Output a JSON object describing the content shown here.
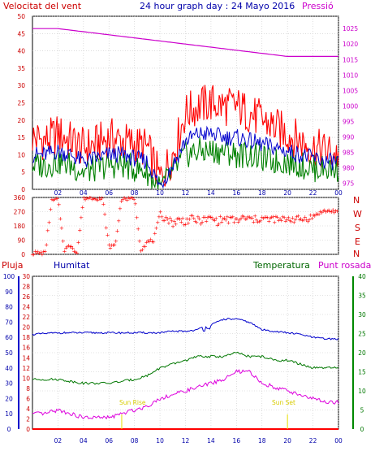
{
  "header": {
    "wind_speed_title": "Velocitat del vent",
    "graph_title": "24 hour graph day : 24 Mayo 2016",
    "pressure_title": "Pressió",
    "rain_title": "Pluja",
    "humidity_title": "Humitat",
    "temperature_title": "Temperatura",
    "dewpoint_title": "Punt rosada",
    "sunrise_label": "Sun Rise",
    "sunset_label": "Sun Set"
  },
  "colors": {
    "wind_gust": "#ff0000",
    "wind_avg": "#0000cc",
    "wind_low": "#008000",
    "pressure": "#cc00cc",
    "direction": "#ff0000",
    "humidity": "#0000cc",
    "temperature": "#007700",
    "dewpoint": "#dd00dd",
    "rain": "#ff0000",
    "sun": "#e8e000"
  },
  "chart_data": [
    {
      "type": "line",
      "x_ticks": [
        "02",
        "04",
        "06",
        "08",
        "10",
        "12",
        "14",
        "16",
        "18",
        "20",
        "22",
        "00"
      ],
      "y_ticks_left": [
        "0",
        "5",
        "10",
        "15",
        "20",
        "25",
        "30",
        "35",
        "40",
        "45",
        "50"
      ],
      "y_ticks_right": [
        "975",
        "980",
        "985",
        "990",
        "995",
        "1000",
        "1005",
        "1010",
        "1015",
        "1020",
        "1025"
      ],
      "ylim": [
        0,
        50
      ],
      "ylim_right": [
        973,
        1029
      ],
      "grid": true,
      "series": [
        {
          "name": "Velocitat del vent",
          "hours": [
            0,
            1,
            2,
            3,
            4,
            5,
            6,
            7,
            8,
            9,
            10,
            11,
            12,
            13,
            14,
            15,
            16,
            17,
            18,
            19,
            20,
            21,
            22,
            23,
            24
          ],
          "values": [
            15,
            14,
            16,
            14,
            12,
            13,
            15,
            14,
            13,
            12,
            3,
            10,
            22,
            24,
            25,
            24,
            24,
            22,
            20,
            18,
            16,
            14,
            12,
            11,
            10
          ]
        },
        {
          "name": "",
          "hours": [
            0,
            1,
            2,
            3,
            4,
            5,
            6,
            7,
            8,
            9,
            10,
            11,
            12,
            13,
            14,
            15,
            16,
            17,
            18,
            19,
            20,
            21,
            22,
            23,
            24
          ],
          "values": [
            10,
            10,
            11,
            10,
            8,
            9,
            10,
            10,
            9,
            8,
            1,
            7,
            14,
            16,
            16,
            15,
            15,
            14,
            13,
            12,
            11,
            10,
            9,
            8,
            8
          ]
        },
        {
          "name": "",
          "hours": [
            0,
            1,
            2,
            3,
            4,
            5,
            6,
            7,
            8,
            9,
            10,
            11,
            12,
            13,
            14,
            15,
            16,
            17,
            18,
            19,
            20,
            21,
            22,
            23,
            24
          ],
          "values": [
            7,
            7,
            8,
            7,
            5,
            6,
            7,
            7,
            6,
            5,
            0,
            5,
            10,
            11,
            11,
            11,
            10,
            10,
            9,
            8,
            8,
            7,
            6,
            6,
            6
          ]
        },
        {
          "name": "Pressió",
          "hours": [
            0,
            2,
            4,
            6,
            8,
            10,
            12,
            14,
            16,
            18,
            20,
            22,
            24
          ],
          "values": [
            1025,
            1025,
            1024,
            1023,
            1022,
            1021,
            1020,
            1019,
            1018,
            1017,
            1016,
            1016,
            1016
          ]
        }
      ]
    },
    {
      "type": "scatter",
      "x_ticks": [
        "02",
        "04",
        "06",
        "08",
        "10",
        "12",
        "14",
        "16",
        "18",
        "20",
        "22",
        "00"
      ],
      "y_ticks_left": [
        "0",
        "90",
        "180",
        "270",
        "360"
      ],
      "direction_labels": [
        "N",
        "W",
        "S",
        "E",
        "N"
      ],
      "ylim": [
        0,
        360
      ],
      "grid": true,
      "series": [
        {
          "name": "",
          "hours": [
            0,
            0.5,
            1,
            1.5,
            2,
            2.5,
            3,
            3.5,
            4,
            4.5,
            5,
            5.5,
            6,
            6.5,
            7,
            7.5,
            8,
            8.5,
            9,
            9.5,
            10,
            10.5,
            11,
            11.5,
            12,
            12.5,
            13,
            13.5,
            14,
            14.5,
            15,
            15.5,
            16,
            16.5,
            17,
            17.5,
            18,
            18.5,
            19,
            19.5,
            20,
            20.5,
            21,
            21.5,
            22,
            22.5,
            23,
            23.5,
            24
          ],
          "values": [
            10,
            10,
            10,
            340,
            350,
            30,
            60,
            10,
            355,
            360,
            360,
            350,
            50,
            60,
            360,
            350,
            360,
            30,
            80,
            90,
            250,
            230,
            200,
            220,
            210,
            225,
            215,
            220,
            230,
            210,
            225,
            220,
            215,
            230,
            225,
            220,
            230,
            220,
            225,
            215,
            230,
            225,
            220,
            230,
            240,
            265,
            275,
            275,
            275
          ]
        }
      ]
    },
    {
      "type": "line",
      "x_ticks": [
        "02",
        "04",
        "06",
        "08",
        "10",
        "12",
        "14",
        "16",
        "18",
        "20",
        "22",
        "00"
      ],
      "y_ticks_rain": [
        "0",
        "2",
        "4",
        "6",
        "8",
        "10",
        "12",
        "14",
        "16",
        "18",
        "20",
        "22",
        "24",
        "26",
        "28",
        "30"
      ],
      "y_ticks_humidity": [
        "0",
        "10",
        "20",
        "30",
        "40",
        "50",
        "60",
        "70",
        "80",
        "90",
        "100"
      ],
      "y_ticks_temperature": [
        "0",
        "5",
        "10",
        "15",
        "20",
        "25",
        "30",
        "35",
        "40"
      ],
      "ylim_temperature": [
        0,
        40
      ],
      "grid": true,
      "sunrise_hour": 7,
      "sunset_hour": 20,
      "series": [
        {
          "name": "Humitat",
          "hours": [
            0,
            2,
            4,
            6,
            8,
            10,
            11,
            12,
            13,
            14,
            15,
            16,
            17,
            18,
            19,
            20,
            21,
            22,
            23,
            24
          ],
          "values": [
            62,
            63,
            63,
            63,
            63,
            63,
            64,
            64,
            65,
            68,
            72,
            72,
            70,
            65,
            64,
            63,
            62,
            60,
            59,
            59
          ]
        },
        {
          "name": "Temperatura",
          "hours": [
            0,
            2,
            4,
            6,
            8,
            9,
            10,
            11,
            12,
            13,
            14,
            15,
            16,
            17,
            18,
            19,
            20,
            21,
            22,
            23,
            24
          ],
          "values": [
            13,
            13,
            12,
            12,
            13,
            14,
            16,
            17,
            18,
            19,
            19,
            19,
            20,
            19,
            19,
            18,
            18,
            17,
            16,
            16,
            16
          ]
        },
        {
          "name": "Punt rosada",
          "hours": [
            0,
            1,
            2,
            3,
            4,
            5,
            6,
            7,
            8,
            9,
            10,
            11,
            12,
            13,
            14,
            15,
            16,
            17,
            18,
            19,
            20,
            21,
            22,
            23,
            24
          ],
          "values": [
            4,
            4,
            5,
            4,
            3,
            3,
            3,
            4,
            5,
            6,
            8,
            9,
            10,
            11,
            12,
            13,
            15,
            15,
            12,
            11,
            10,
            9,
            8,
            7,
            7
          ]
        },
        {
          "name": "Pluja",
          "hours": [
            0,
            24
          ],
          "values": [
            0,
            0
          ]
        }
      ]
    }
  ]
}
